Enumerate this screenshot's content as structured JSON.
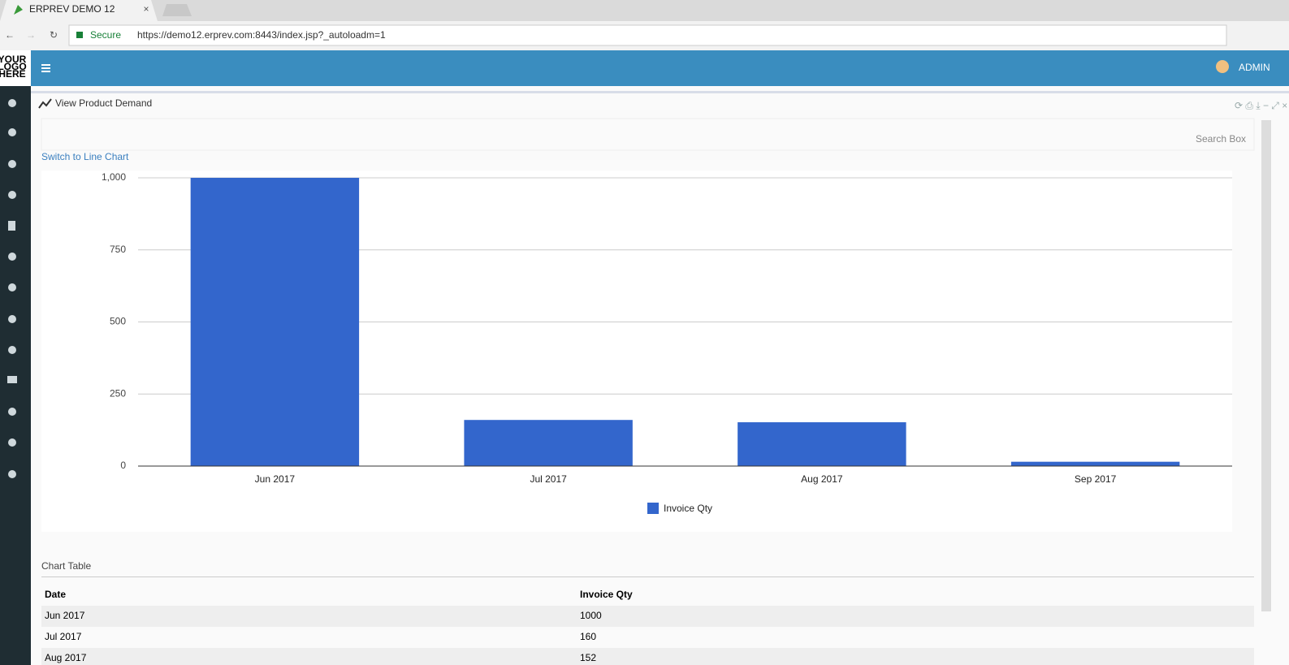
{
  "browser": {
    "tab_title": "ERPREV DEMO 12",
    "secure_label": "Secure",
    "url": "https://demo12.erprev.com:8443/index.jsp?_autoloadm=1"
  },
  "header": {
    "logo": [
      "YOUR",
      "LOGO",
      "HERE"
    ],
    "user": "ADMIN"
  },
  "panel": {
    "title": "View Product Demand",
    "search_box": "Search Box",
    "switch_link": "Switch to Line Chart"
  },
  "chart_data": {
    "type": "bar",
    "categories": [
      "Jun 2017",
      "Jul 2017",
      "Aug 2017",
      "Sep 2017"
    ],
    "series": [
      {
        "name": "Invoice Qty",
        "color": "#3366cc",
        "values": [
          1000,
          160,
          152,
          15
        ]
      }
    ],
    "ylim": [
      0,
      1000
    ],
    "yticks": [
      0,
      250,
      500,
      750,
      {
        "value": 1000,
        "label": "1,000"
      }
    ],
    "grid": true,
    "legend": "bottom"
  },
  "table": {
    "title": "Chart Table",
    "columns": [
      "Date",
      "Invoice Qty"
    ],
    "rows": [
      [
        "Jun 2017",
        1000
      ],
      [
        "Jul 2017",
        160
      ],
      [
        "Aug 2017",
        152
      ]
    ]
  }
}
